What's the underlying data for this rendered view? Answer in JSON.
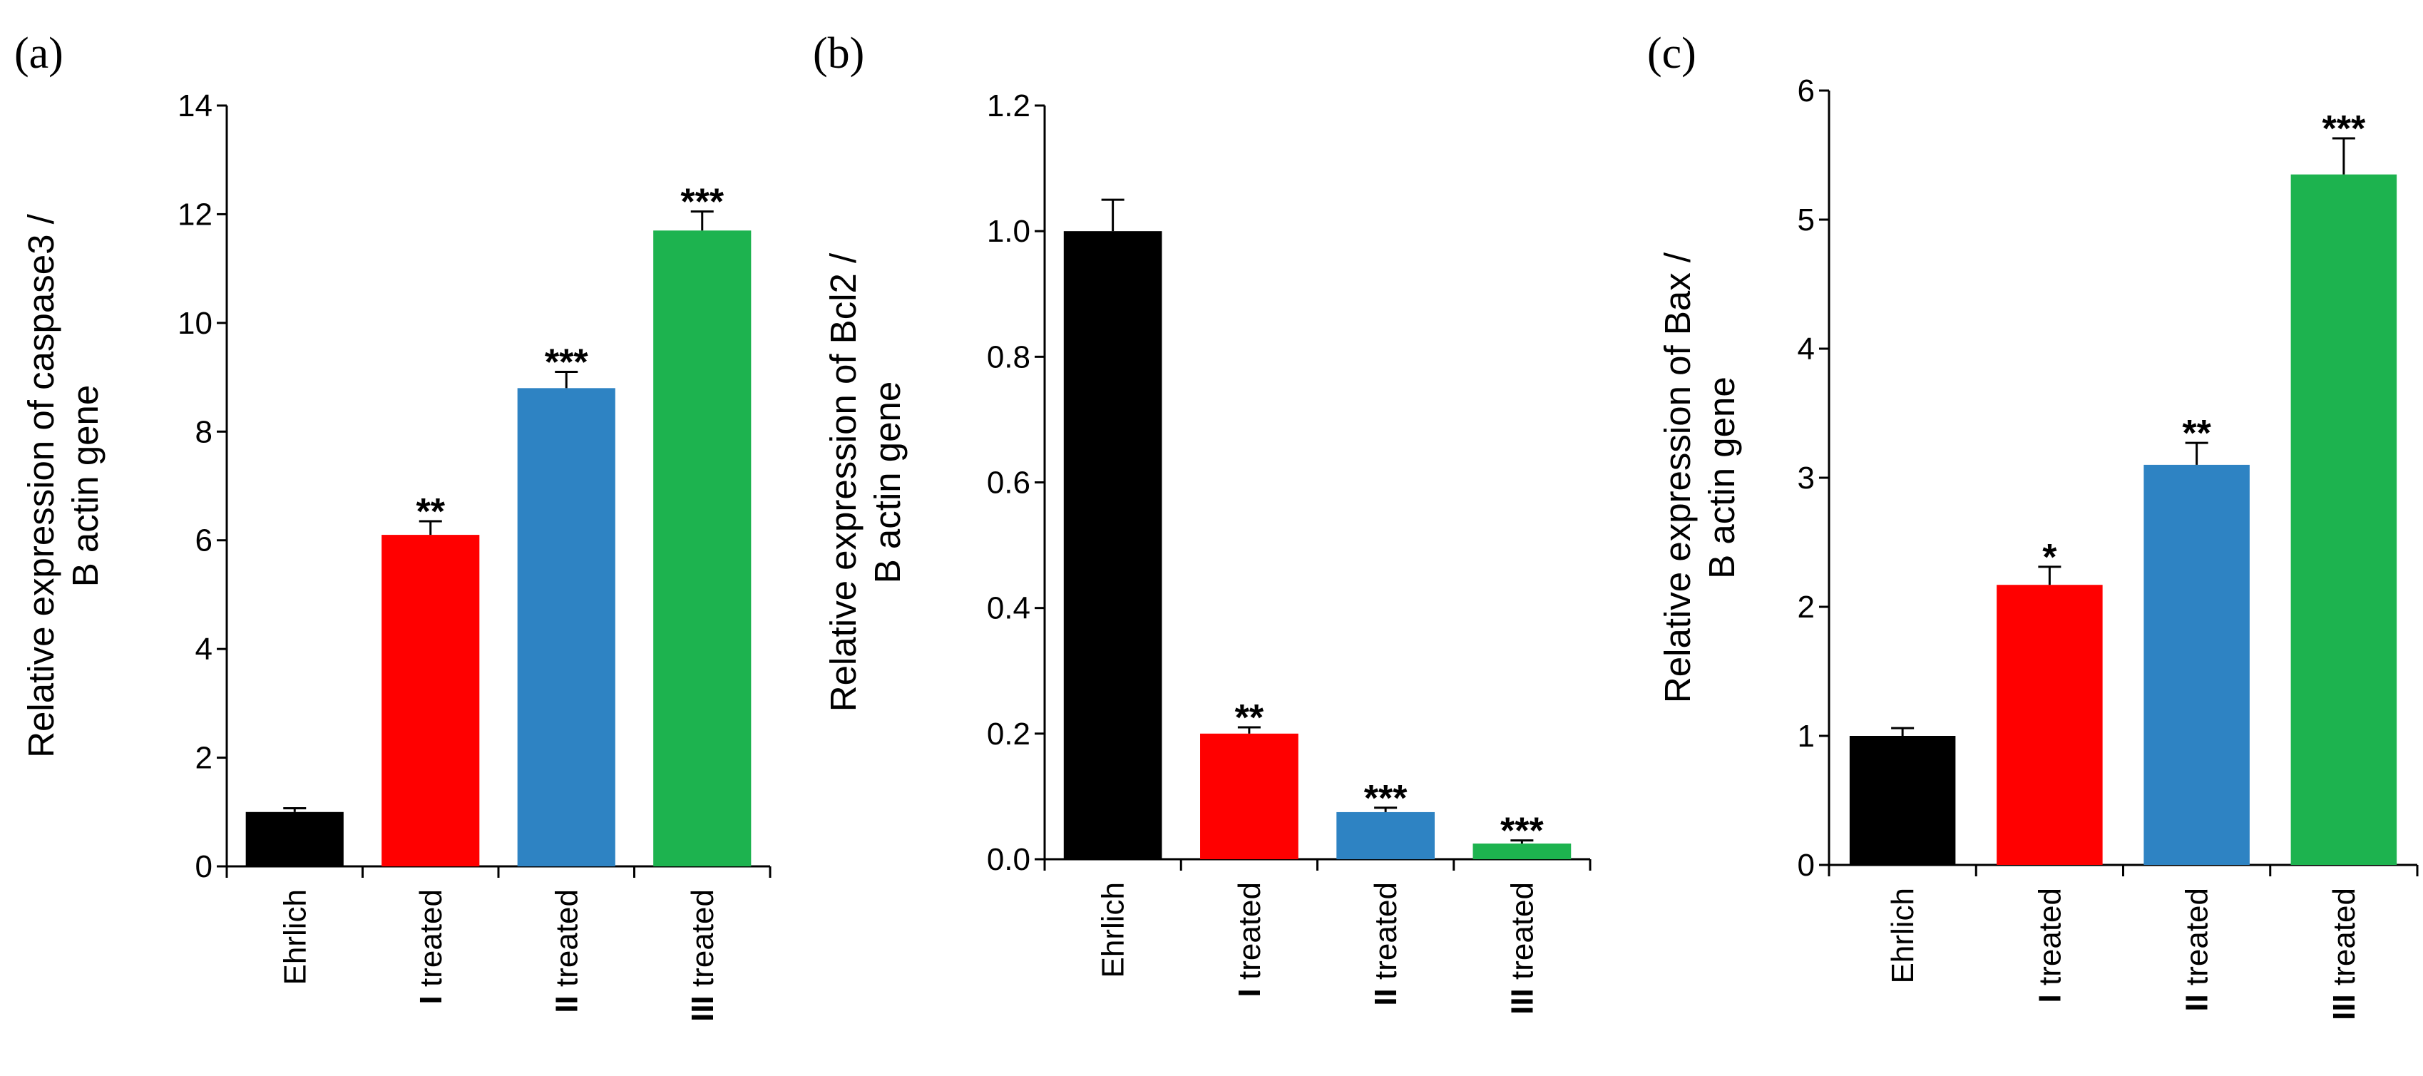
{
  "chart_data": [
    {
      "type": "bar",
      "panel_label": "(a)",
      "ylabel_lines": [
        "Relative expression of caspase3 /",
        "B actin gene"
      ],
      "ylim": [
        0,
        14
      ],
      "yticks": [
        "0",
        "2",
        "4",
        "6",
        "8",
        "10",
        "12",
        "14"
      ],
      "tick_values": [
        0,
        2,
        4,
        6,
        8,
        10,
        12,
        14
      ],
      "categories": [
        {
          "roman": "",
          "text": "Ehrlich"
        },
        {
          "roman": "I",
          "text": " treated"
        },
        {
          "roman": "II",
          "text": " treated"
        },
        {
          "roman": "III",
          "text": " treated"
        }
      ],
      "values": [
        1.0,
        6.1,
        8.8,
        11.7
      ],
      "errors": [
        0.07,
        0.25,
        0.3,
        0.35
      ],
      "significance": [
        "",
        "**",
        "***",
        "***"
      ],
      "colors": [
        "#000000",
        "#ff0000",
        "#2e83c3",
        "#1db34f"
      ]
    },
    {
      "type": "bar",
      "panel_label": "(b)",
      "ylabel_lines": [
        "Relative expression of Bcl2 /",
        "B actin gene"
      ],
      "ylim": [
        0,
        1.2
      ],
      "yticks": [
        "0.0",
        "0.2",
        "0.4",
        "0.6",
        "0.8",
        "1.0",
        "1.2"
      ],
      "tick_values": [
        0,
        0.2,
        0.4,
        0.6,
        0.8,
        1.0,
        1.2
      ],
      "categories": [
        {
          "roman": "",
          "text": "Ehrlich"
        },
        {
          "roman": "I",
          "text": " treated"
        },
        {
          "roman": "II",
          "text": " treated"
        },
        {
          "roman": "III",
          "text": " treated"
        }
      ],
      "values": [
        1.0,
        0.2,
        0.075,
        0.025
      ],
      "errors": [
        0.05,
        0.01,
        0.007,
        0.005
      ],
      "significance": [
        "",
        "**",
        "***",
        "***"
      ],
      "colors": [
        "#000000",
        "#ff0000",
        "#2e83c3",
        "#1db34f"
      ]
    },
    {
      "type": "bar",
      "panel_label": "(c)",
      "ylabel_lines": [
        "Relative expression of Bax /",
        "B actin gene"
      ],
      "ylim": [
        0,
        6
      ],
      "yticks": [
        "0",
        "1",
        "2",
        "3",
        "4",
        "5",
        "6"
      ],
      "tick_values": [
        0,
        1,
        2,
        3,
        4,
        5,
        6
      ],
      "categories": [
        {
          "roman": "",
          "text": "Ehrlich"
        },
        {
          "roman": "I",
          "text": " treated"
        },
        {
          "roman": "II",
          "text": " treated"
        },
        {
          "roman": "III",
          "text": " treated"
        }
      ],
      "values": [
        1.0,
        2.17,
        3.1,
        5.35
      ],
      "errors": [
        0.06,
        0.14,
        0.17,
        0.28
      ],
      "significance": [
        "",
        "*",
        "**",
        "***"
      ],
      "colors": [
        "#000000",
        "#ff0000",
        "#2e83c3",
        "#1db34f"
      ]
    }
  ]
}
